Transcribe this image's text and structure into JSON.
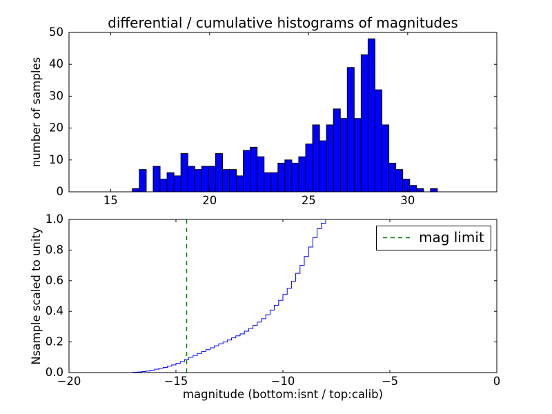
{
  "chart_data": [
    {
      "type": "bar",
      "subplot": "top",
      "title": "differential / cumulative histograms of magnitudes",
      "ylabel": "number of samples",
      "xlabel": "",
      "bar_color": "#0000ff",
      "bar_edge_color": "#000000",
      "xlim": [
        12.9,
        34.5
      ],
      "ylim": [
        0,
        50
      ],
      "bin_start": 16.1,
      "bin_width": 0.35,
      "values": [
        1,
        7,
        0,
        8,
        4,
        6,
        5,
        12,
        8,
        7,
        8,
        8,
        12,
        7,
        7,
        5,
        13,
        14,
        11,
        6,
        6,
        9,
        10,
        9,
        11,
        15,
        21,
        16,
        21,
        26,
        23,
        39,
        23,
        43,
        48,
        32,
        21,
        9,
        7,
        4,
        2,
        1,
        0,
        1
      ],
      "xticks": {
        "values": [
          15,
          20,
          25,
          30
        ],
        "labels": [
          "15",
          "20",
          "25",
          "30"
        ]
      },
      "yticks": {
        "values": [
          0,
          10,
          20,
          30,
          40,
          50
        ],
        "labels": [
          "0",
          "10",
          "20",
          "30",
          "40",
          "50"
        ]
      },
      "grid": false,
      "legend": null
    },
    {
      "type": "line",
      "subplot": "bottom",
      "style": "step",
      "step_width": 0.2,
      "ylabel": "Nsample scaled to unity",
      "xlabel": "magnitude (bottom:isnt / top:calib)",
      "line_color": "#0000ff",
      "xlim": [
        -20,
        0
      ],
      "ylim": [
        0.0,
        1.0
      ],
      "x": [
        -17.0,
        -16.8,
        -16.6,
        -16.4,
        -16.2,
        -16.0,
        -15.8,
        -15.6,
        -15.4,
        -15.2,
        -15.0,
        -14.8,
        -14.6,
        -14.4,
        -14.2,
        -14.0,
        -13.8,
        -13.6,
        -13.4,
        -13.2,
        -13.0,
        -12.8,
        -12.6,
        -12.4,
        -12.2,
        -12.0,
        -11.8,
        -11.6,
        -11.4,
        -11.2,
        -11.0,
        -10.8,
        -10.6,
        -10.4,
        -10.2,
        -10.0,
        -9.8,
        -9.6,
        -9.4,
        -9.2,
        -9.0,
        -8.8,
        -8.6,
        -8.4,
        -8.2,
        -8.0
      ],
      "y": [
        0.002,
        0.004,
        0.007,
        0.01,
        0.015,
        0.022,
        0.028,
        0.034,
        0.042,
        0.05,
        0.06,
        0.072,
        0.085,
        0.1,
        0.112,
        0.125,
        0.138,
        0.15,
        0.162,
        0.175,
        0.188,
        0.2,
        0.213,
        0.227,
        0.24,
        0.253,
        0.27,
        0.288,
        0.308,
        0.33,
        0.352,
        0.378,
        0.408,
        0.44,
        0.472,
        0.51,
        0.55,
        0.597,
        0.648,
        0.7,
        0.758,
        0.82,
        0.882,
        0.94,
        0.975,
        1.0
      ],
      "xticks": {
        "values": [
          -20,
          -15,
          -10,
          -5,
          0
        ],
        "labels": [
          "−20",
          "−15",
          "−10",
          "−5",
          "0"
        ]
      },
      "yticks": {
        "values": [
          0.0,
          0.2,
          0.4,
          0.6,
          0.8,
          1.0
        ],
        "labels": [
          "0.0",
          "0.2",
          "0.4",
          "0.6",
          "0.8",
          "1.0"
        ]
      },
      "vline": {
        "x": -14.5,
        "color": "#008000",
        "linestyle": "dashed",
        "label": "mag limit"
      },
      "legend": {
        "position": "upper right",
        "entries": [
          {
            "label": "mag limit",
            "color": "#008000",
            "linestyle": "dashed"
          }
        ]
      },
      "grid": false
    }
  ]
}
